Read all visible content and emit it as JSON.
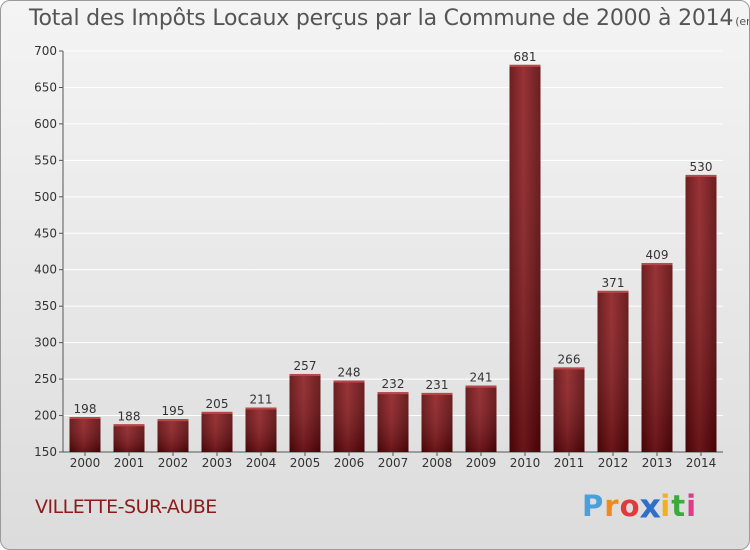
{
  "header": {
    "title": "Total des Impôts Locaux perçus par la Commune de 2000 à 2014",
    "unit": "(en milliers d'€)"
  },
  "footer": {
    "commune": "VILLETTE-SUR-AUBE",
    "logo_letters": [
      "P",
      "r",
      "o",
      "x",
      "i",
      "t",
      "i"
    ],
    "logo_colors": [
      "#4aa0dc",
      "#f08a1c",
      "#e03a3a",
      "#2f6fcc",
      "#f2b11c",
      "#3aaa3a",
      "#e03a8a"
    ]
  },
  "chart_data": {
    "type": "bar",
    "title": "Total des Impôts Locaux perçus par la Commune de 2000 à 2014",
    "xlabel": "",
    "ylabel": "",
    "categories": [
      "2000",
      "2001",
      "2002",
      "2003",
      "2004",
      "2005",
      "2006",
      "2007",
      "2008",
      "2009",
      "2010",
      "2011",
      "2012",
      "2013",
      "2014"
    ],
    "values": [
      198,
      188,
      195,
      205,
      211,
      257,
      248,
      232,
      231,
      241,
      681,
      266,
      371,
      409,
      530
    ],
    "ylim": [
      150,
      700
    ],
    "yticks": [
      150,
      200,
      250,
      300,
      350,
      400,
      450,
      500,
      550,
      600,
      650,
      700
    ],
    "grid": true,
    "bar_color": "#7a0f12"
  }
}
